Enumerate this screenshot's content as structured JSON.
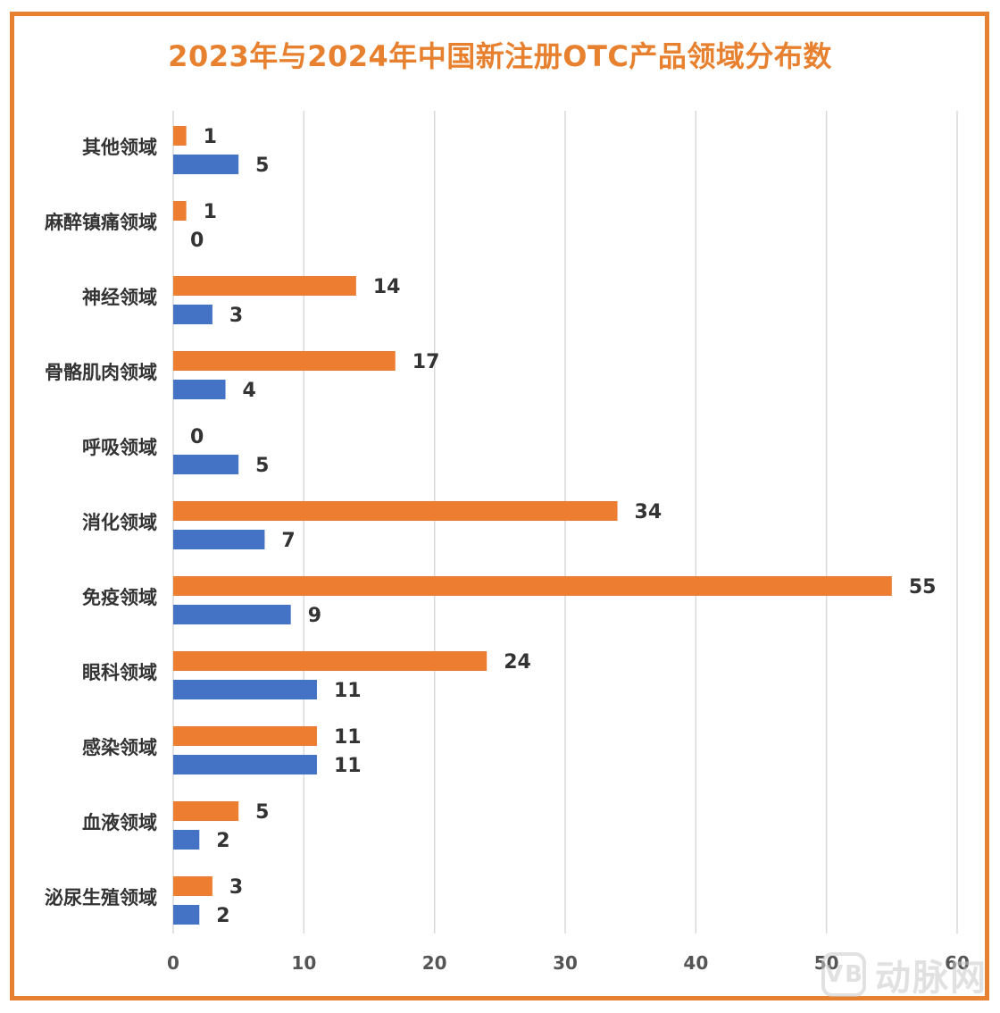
{
  "colors": {
    "border": "#E8812F",
    "series_2024": "#ED7D31",
    "series_2023": "#4472C4",
    "grid": "#D9D9D9"
  },
  "watermark": {
    "logo_text": "VB",
    "text": "动脉网"
  },
  "chart_data": {
    "type": "bar",
    "orientation": "horizontal",
    "title": "2023年与2024年中国新注册OTC产品领域分布数",
    "categories": [
      "其他领域",
      "麻醉镇痛领域",
      "神经领域",
      "骨骼肌肉领域",
      "呼吸领域",
      "消化领域",
      "免疫领域",
      "眼科领域",
      "感染领域",
      "血液领域",
      "泌尿生殖领域"
    ],
    "series": [
      {
        "values": [
          1,
          1,
          14,
          17,
          0,
          34,
          55,
          24,
          11,
          5,
          3
        ]
      },
      {
        "values": [
          5,
          0,
          3,
          4,
          5,
          7,
          9,
          11,
          11,
          2,
          2
        ]
      }
    ],
    "xlim": [
      0,
      60
    ],
    "xticks": [
      0,
      10,
      20,
      30,
      40,
      50,
      60
    ],
    "grid": true,
    "legend": "none",
    "data_labels": true
  }
}
